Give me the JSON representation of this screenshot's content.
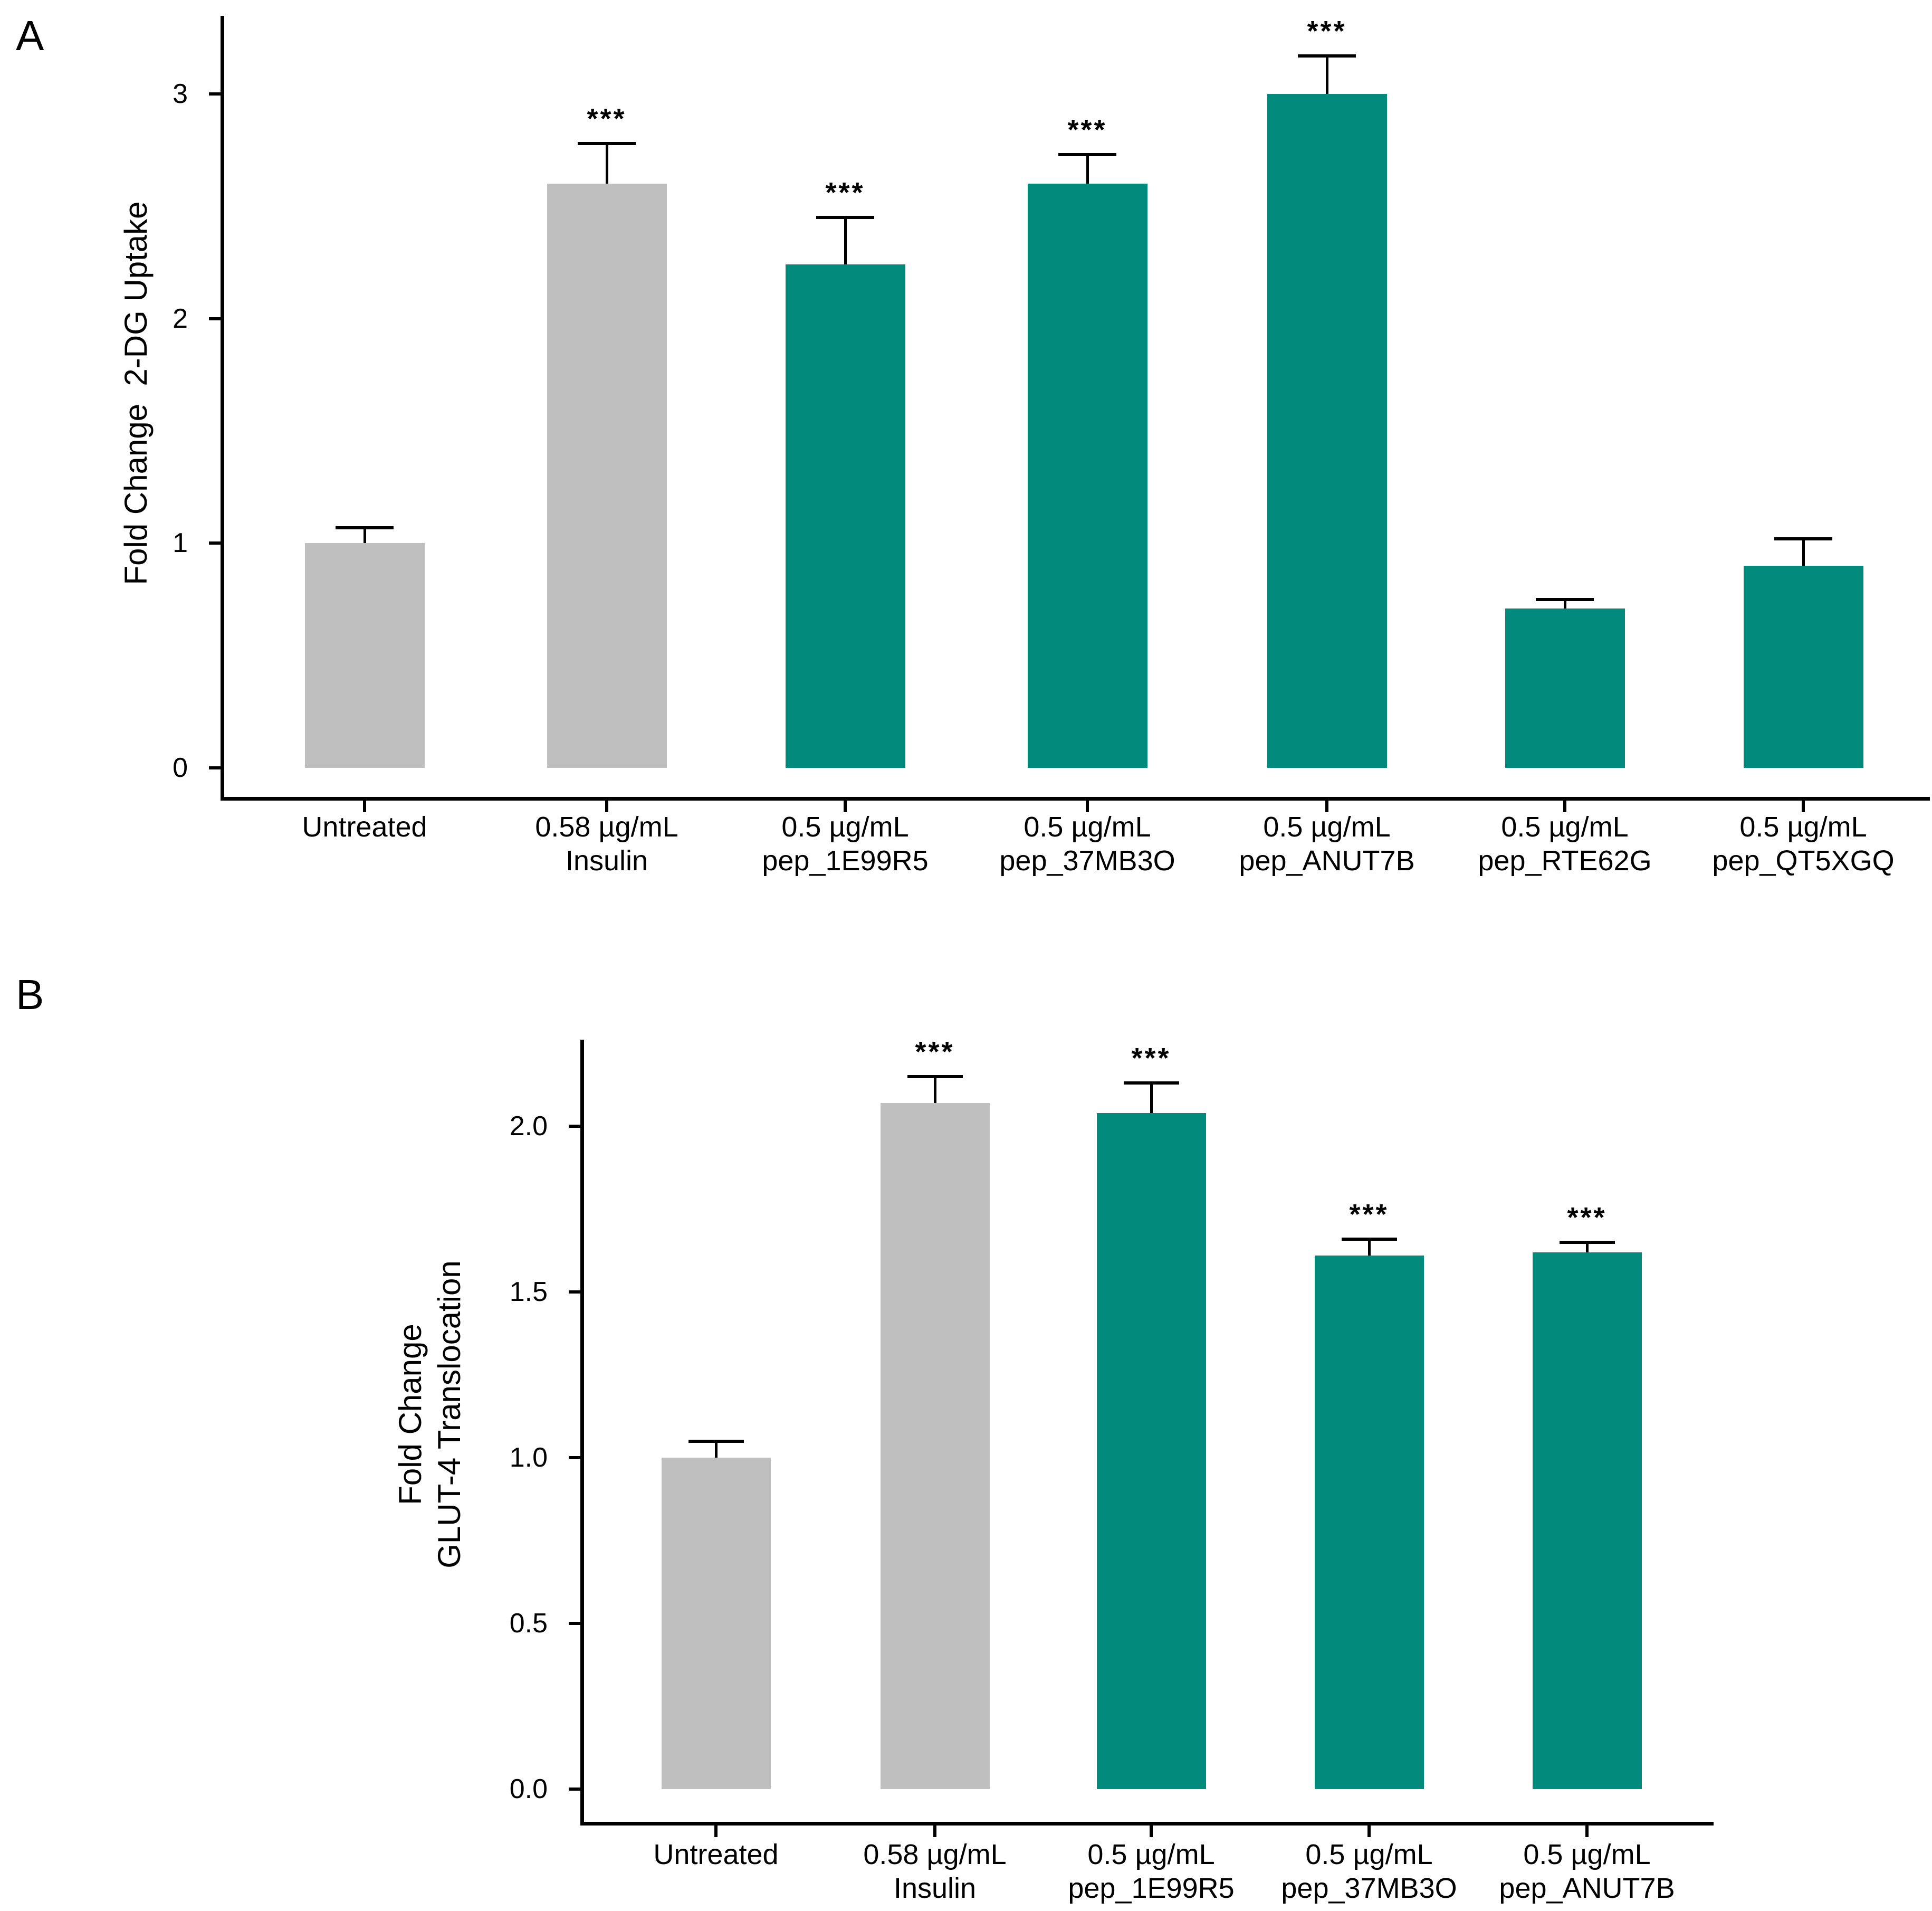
{
  "figure": {
    "type": "two-panel bar figure",
    "background": "#ffffff"
  },
  "colors": {
    "control_bar": "#BFBFBF",
    "peptide_bar": "#028A7D",
    "axis": "#000000",
    "text": "#000000"
  },
  "chart_data": [
    {
      "type": "bar",
      "panel_label": "A",
      "title": "",
      "xlabel": "",
      "ylabel": "Fold Change  2-DG Uptake",
      "ylim": [
        0,
        3.37
      ],
      "grid": false,
      "legend": null,
      "ytick_values": [
        0,
        1,
        2,
        3
      ],
      "ytick_labels": [
        "0",
        "1",
        "2",
        "3"
      ],
      "categories": [
        "Untreated",
        "0.58 µg/mL\nInsulin",
        "0.5 µg/mL\npep_1E99R5",
        "0.5 µg/mL\npep_37MB3O",
        "0.5 µg/mL\npep_ANUT7B",
        "0.5 µg/mL\npep_RTE62G",
        "0.5 µg/mL\npep_QT5XGQ"
      ],
      "values": [
        1.0,
        2.6,
        2.24,
        2.6,
        3.0,
        0.71,
        0.9
      ],
      "errors_upper": [
        0.07,
        0.18,
        0.21,
        0.13,
        0.17,
        0.04,
        0.12
      ],
      "significance": [
        "",
        "***",
        "***",
        "***",
        "***",
        "",
        ""
      ],
      "bar_colors": [
        "#BFBFBF",
        "#BFBFBF",
        "#028A7D",
        "#028A7D",
        "#028A7D",
        "#028A7D",
        "#028A7D"
      ]
    },
    {
      "type": "bar",
      "panel_label": "B",
      "title": "",
      "xlabel": "",
      "ylabel": "Fold Change\nGLUT-4 Translocation",
      "ylim": [
        0,
        2.26
      ],
      "grid": false,
      "legend": null,
      "ytick_values": [
        0,
        0.5,
        1,
        1.5,
        2
      ],
      "ytick_labels": [
        "0.0",
        "0.5",
        "1.0",
        "1.5",
        "2.0"
      ],
      "categories": [
        "Untreated",
        "0.58 µg/mL\nInsulin",
        "0.5 µg/mL\npep_1E99R5",
        "0.5 µg/mL\npep_37MB3O",
        "0.5 µg/mL\npep_ANUT7B"
      ],
      "values": [
        1.0,
        2.07,
        2.04,
        1.61,
        1.62
      ],
      "errors_upper": [
        0.05,
        0.08,
        0.09,
        0.05,
        0.03
      ],
      "significance": [
        "",
        "***",
        "***",
        "***",
        "***"
      ],
      "bar_colors": [
        "#BFBFBF",
        "#BFBFBF",
        "#028A7D",
        "#028A7D",
        "#028A7D"
      ]
    }
  ]
}
